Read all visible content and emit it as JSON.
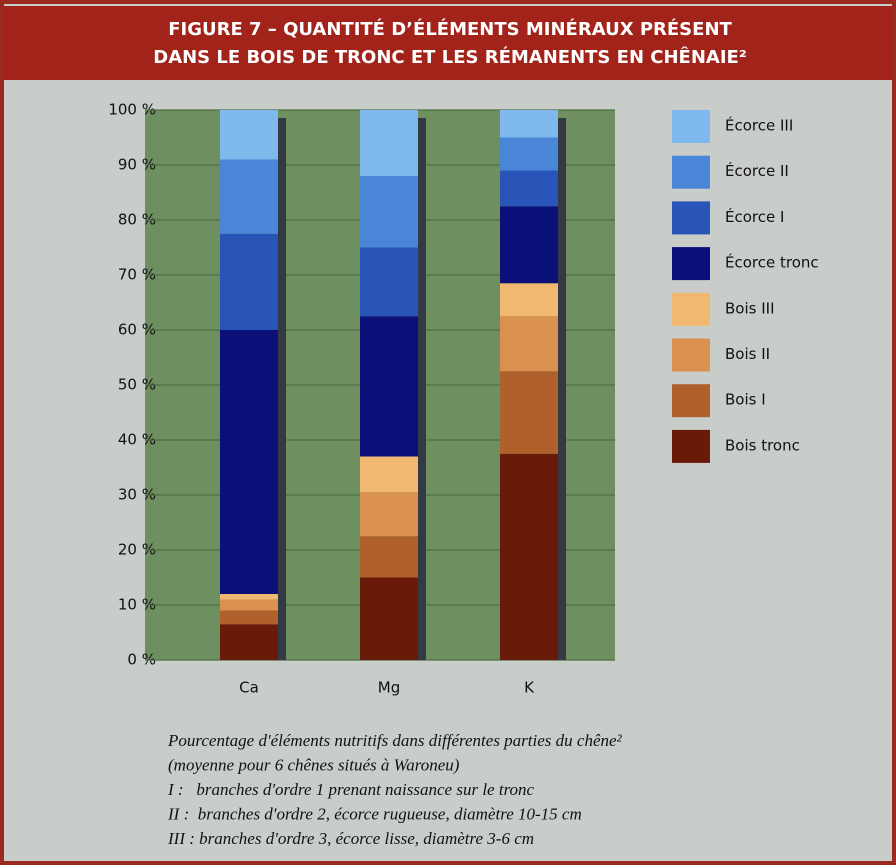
{
  "chart_data": {
    "type": "stacked_bar",
    "title": [
      "FIGURE 7 – QUANTITÉ D’ÉLÉMENTS MINÉRAUX PRÉSENT",
      "DANS LE BOIS DE TRONC ET LES RÉMANENTS EN CHÊNAIE²"
    ],
    "categories": [
      "Ca",
      "Mg",
      "K"
    ],
    "series": [
      {
        "name": "Bois tronc",
        "color": "#6a1a08",
        "values": [
          6.5,
          15,
          37.5
        ]
      },
      {
        "name": "Bois I",
        "color": "#b0602a",
        "values": [
          2.5,
          7.5,
          15
        ]
      },
      {
        "name": "Bois II",
        "color": "#d99050",
        "values": [
          2,
          8,
          10
        ]
      },
      {
        "name": "Bois III",
        "color": "#f0b870",
        "values": [
          1,
          6.5,
          6
        ]
      },
      {
        "name": "Écorce tronc",
        "color": "#0a1078",
        "values": [
          48,
          25.5,
          14
        ]
      },
      {
        "name": "Écorce I",
        "color": "#2a55b8",
        "values": [
          17.5,
          12.5,
          6.5
        ]
      },
      {
        "name": "Écorce II",
        "color": "#4a86d8",
        "values": [
          13.5,
          13,
          6
        ]
      },
      {
        "name": "Écorce III",
        "color": "#7fb8ec",
        "values": [
          9,
          12,
          5
        ]
      }
    ],
    "ylim": [
      0,
      100
    ],
    "yticks": [
      {
        "value": 0,
        "label": "0 %"
      },
      {
        "value": 10,
        "label": "10 %"
      },
      {
        "value": 20,
        "label": "20 %"
      },
      {
        "value": 30,
        "label": "30 %"
      },
      {
        "value": 40,
        "label": "40 %"
      },
      {
        "value": 50,
        "label": "50 %"
      },
      {
        "value": 60,
        "label": "60 %"
      },
      {
        "value": 70,
        "label": "70 %"
      },
      {
        "value": 80,
        "label": "80 %"
      },
      {
        "value": 90,
        "label": "90 %"
      },
      {
        "value": 100,
        "label": "100 %"
      }
    ],
    "grid": true,
    "legend": "right",
    "caption": [
      "Pourcentage d'éléments nutritifs dans différentes parties du chêne²",
      "(moyenne pour 6 chênes situés à Waroneu)",
      "I :   branches d'ordre 1 prenant naissance sur le tronc",
      "II :  branches d'ordre 2, écorce rugueuse, diamètre 10-15 cm",
      "III : branches d'ordre 3, écorce lisse, diamètre 3-6 cm"
    ]
  }
}
